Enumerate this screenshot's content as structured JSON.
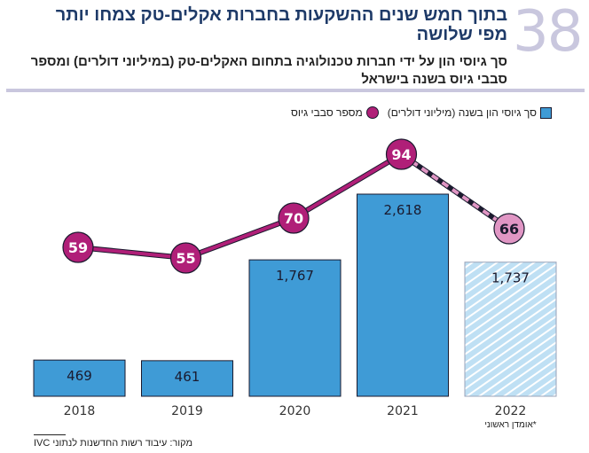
{
  "header": {
    "number": "38",
    "title": "בתוך חמש שנים ההשקעות בחברות אקלים-טק צמחו יותר מפי שלושה",
    "subtitle": "סך גיוסי הון על ידי חברות טכנולוגיה בתחום האקלים-טק (במיליוני דולרים) ומספר סבבי גיוס בשנה בישראל"
  },
  "chart_data": {
    "type": "bar+line",
    "categories": [
      "2018",
      "2019",
      "2020",
      "2021",
      "2022"
    ],
    "series": [
      {
        "name": "סך גיוסי הון בשנה (מיליוני דולרים)",
        "type": "bar",
        "values": [
          469,
          461,
          1767,
          2618,
          1737
        ],
        "labels": [
          "469",
          "461",
          "1,767",
          "2,618",
          "1,737"
        ],
        "color": "#3f9bd6"
      },
      {
        "name": "מספר סבבי גיוס",
        "type": "line",
        "values": [
          59,
          55,
          70,
          94,
          66
        ],
        "color": "#b01f78"
      }
    ],
    "estimate_category": "2022",
    "estimate_note": "*אומדן ראשוני",
    "estimate_colors": {
      "bar": "#bfe0f4",
      "line": "#e096c4"
    },
    "grid": false
  },
  "source": "מקור: עיבוד רשות החדשנות לנתוני IVC"
}
